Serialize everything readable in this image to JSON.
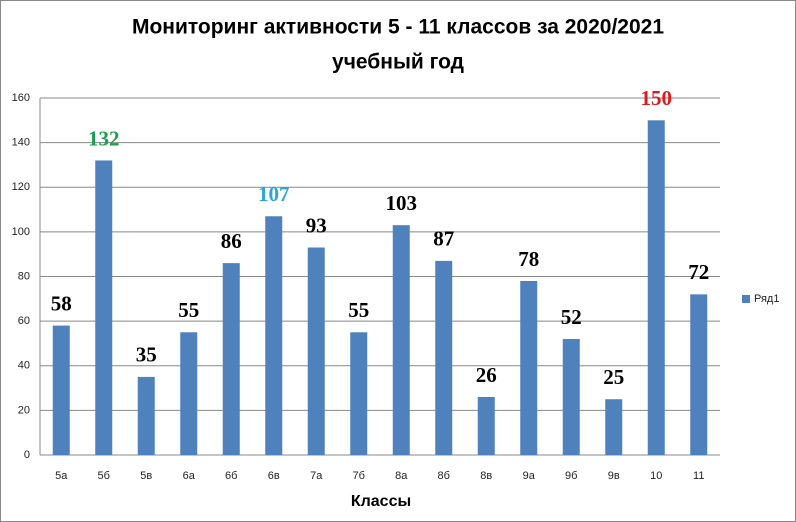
{
  "chart_data": {
    "type": "bar",
    "title": [
      "Мониторинг активности  5 - 11 классов за 2020/2021",
      "учебный год"
    ],
    "x_label": "Классы",
    "categories": [
      "5а",
      "5б",
      "5в",
      "6а",
      "6б",
      "6в",
      "7а",
      "7б",
      "8а",
      "8б",
      "8в",
      "9а",
      "9б",
      "9в",
      "10",
      "11"
    ],
    "series": [
      {
        "name": "Ряд1",
        "color": "#4f81bd",
        "values": [
          58,
          132,
          35,
          55,
          86,
          107,
          93,
          55,
          103,
          87,
          26,
          78,
          52,
          25,
          150,
          72
        ],
        "label_colors": [
          "#000000",
          "#1e9e50",
          "#000000",
          "#000000",
          "#000000",
          "#2aa6d8",
          "#000000",
          "#000000",
          "#000000",
          "#000000",
          "#000000",
          "#000000",
          "#000000",
          "#000000",
          "#e0191e",
          "#000000"
        ]
      }
    ],
    "ylim": [
      0,
      160
    ],
    "yticks": [
      0,
      20,
      40,
      60,
      80,
      100,
      120,
      140,
      160
    ],
    "grid": true,
    "legend": "right"
  }
}
